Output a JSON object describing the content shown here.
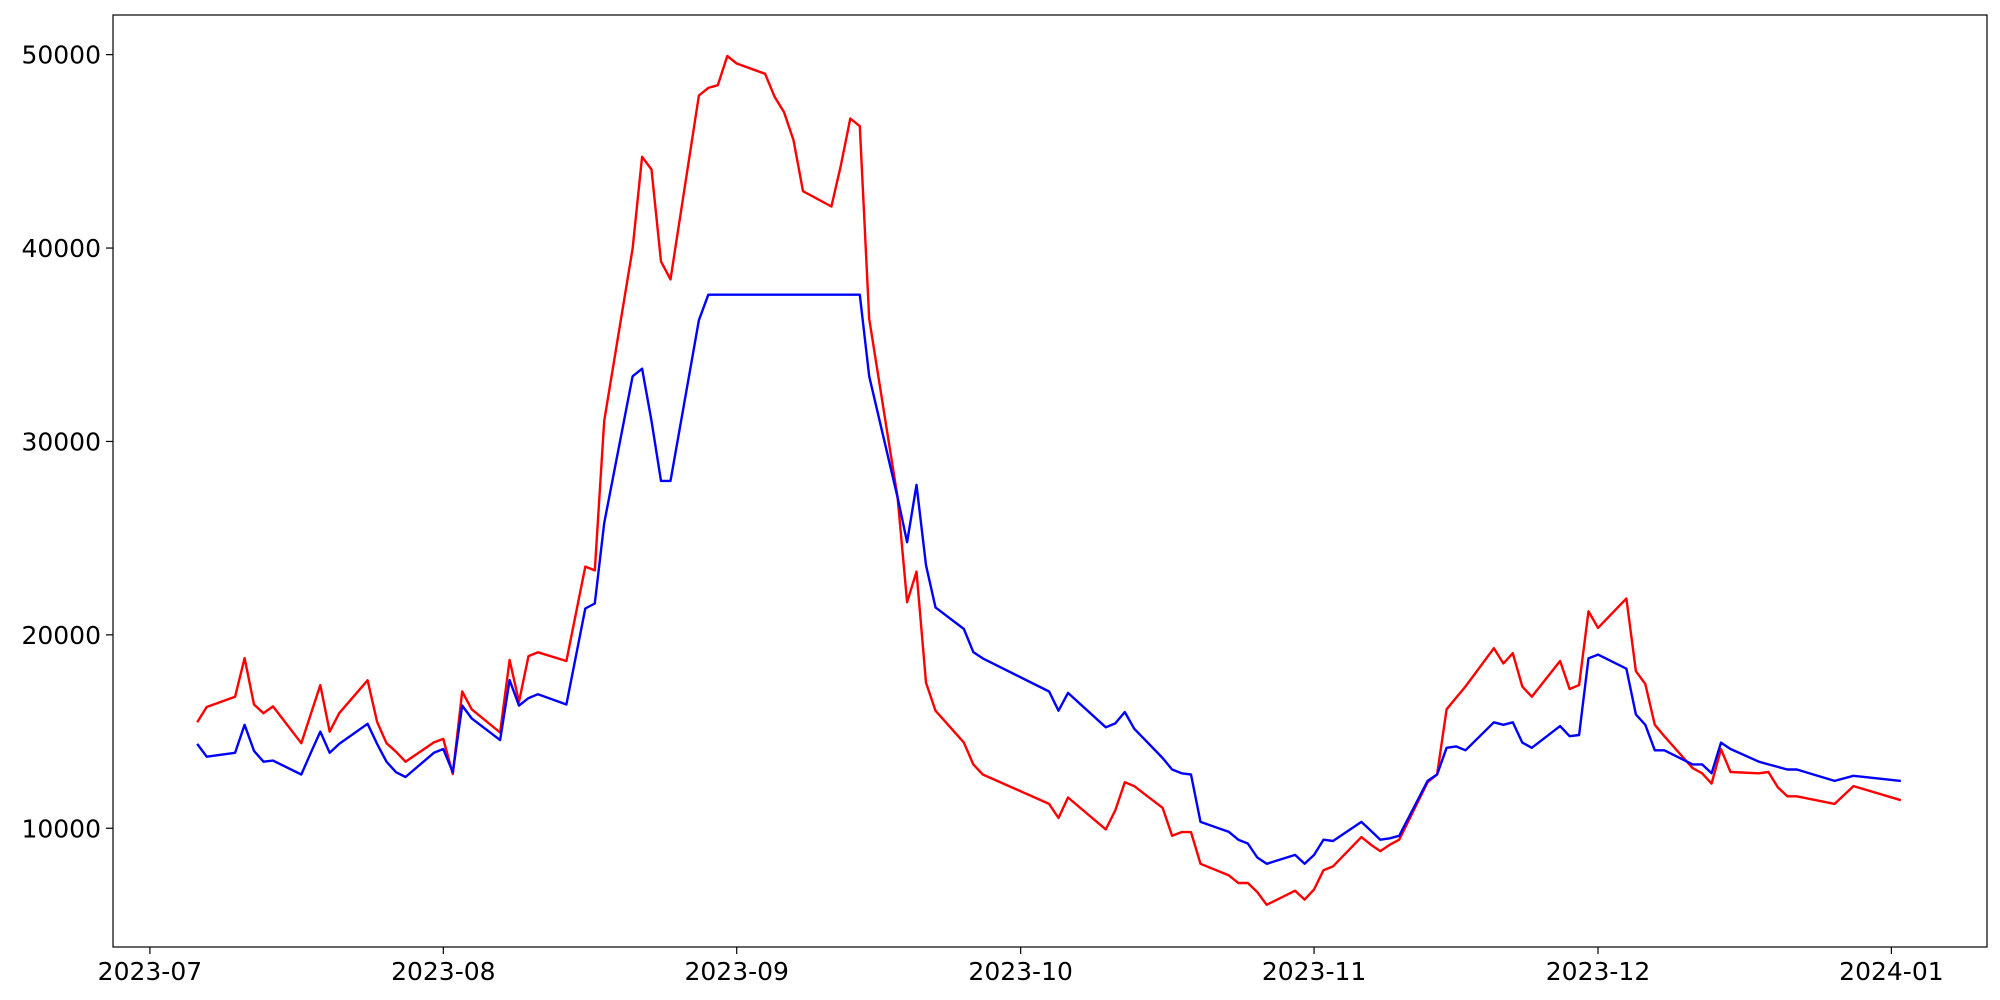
{
  "chart_data": {
    "type": "line",
    "x": [
      19544,
      19545,
      19548,
      19549,
      19550,
      19551,
      19552,
      19555,
      19556,
      19557,
      19558,
      19559,
      19562,
      19563,
      19564,
      19565,
      19566,
      19569,
      19570,
      19571,
      19572,
      19573,
      19576,
      19577,
      19578,
      19579,
      19580,
      19583,
      19585,
      19586,
      19587,
      19590,
      19591,
      19592,
      19593,
      19594,
      19597,
      19598,
      19599,
      19600,
      19601,
      19604,
      19605,
      19606,
      19607,
      19608,
      19611,
      19612,
      19613,
      19614,
      19615,
      19618,
      19619,
      19620,
      19621,
      19622,
      19625,
      19626,
      19627,
      19634,
      19635,
      19636,
      19640,
      19641,
      19642,
      19643,
      19646,
      19647,
      19648,
      19649,
      19650,
      19653,
      19654,
      19655,
      19656,
      19657,
      19660,
      19661,
      19662,
      19663,
      19664,
      19667,
      19668,
      19669,
      19670,
      19671,
      19674,
      19675,
      19676,
      19677,
      19678,
      19681,
      19682,
      19683,
      19684,
      19685,
      19688,
      19689,
      19690,
      19691,
      19692,
      19695,
      19696,
      19697,
      19698,
      19699,
      19702,
      19703,
      19704,
      19705,
      19706,
      19709,
      19710,
      19711,
      19712,
      19713,
      19717,
      19719,
      19724
    ],
    "series": [
      {
        "color": "#ff0000",
        "values": [
          15480,
          16270,
          16800,
          18800,
          16400,
          15950,
          16300,
          14400,
          15900,
          17400,
          15000,
          15950,
          17650,
          15500,
          14400,
          13960,
          13440,
          14440,
          14620,
          12800,
          17070,
          16150,
          14950,
          18700,
          16540,
          18900,
          19100,
          18650,
          23530,
          23330,
          31060,
          39970,
          44720,
          44060,
          39310,
          38380,
          47890,
          48280,
          48420,
          49930,
          49540,
          49010,
          47820,
          47030,
          45580,
          42940,
          42150,
          44260,
          46700,
          46300,
          36340,
          27100,
          21690,
          23270,
          17530,
          16080,
          14430,
          13300,
          12780,
          11260,
          10530,
          11590,
          9940,
          10930,
          12380,
          12180,
          11060,
          9610,
          9800,
          9800,
          8160,
          7560,
          7170,
          7170,
          6700,
          6040,
          6770,
          6310,
          6840,
          7830,
          8030,
          9540,
          9150,
          8820,
          9150,
          9410,
          12380,
          12780,
          16150,
          16740,
          17330,
          19310,
          18520,
          19050,
          17330,
          16800,
          18650,
          17200,
          17400,
          21220,
          20360,
          21880,
          18120,
          17460,
          15350,
          14760,
          13110,
          12840,
          12310,
          14090,
          12910,
          12840,
          12910,
          12120,
          11650,
          11650,
          11260,
          12180,
          11450
        ]
      },
      {
        "color": "#0000ff",
        "values": [
          14360,
          13700,
          13900,
          15350,
          14000,
          13440,
          13500,
          12780,
          13900,
          15000,
          13900,
          14360,
          15400,
          14360,
          13440,
          12900,
          12650,
          13900,
          14100,
          12900,
          16340,
          15680,
          14560,
          17660,
          16340,
          16730,
          16930,
          16400,
          21360,
          21620,
          25780,
          33370,
          33760,
          31060,
          27960,
          27960,
          36270,
          37590,
          37590,
          37590,
          37590,
          37590,
          37590,
          37590,
          37590,
          37590,
          37590,
          37590,
          37590,
          37590,
          33370,
          27100,
          24790,
          27760,
          23600,
          21420,
          20300,
          19110,
          18780,
          17070,
          16080,
          17000,
          15220,
          15420,
          16010,
          15150,
          13630,
          13040,
          12840,
          12780,
          10330,
          9810,
          9410,
          9210,
          8490,
          8160,
          8620,
          8160,
          8620,
          9410,
          9340,
          10330,
          9870,
          9410,
          9480,
          9610,
          12450,
          12780,
          14160,
          14230,
          14030,
          15480,
          15350,
          15480,
          14430,
          14160,
          15280,
          14760,
          14820,
          18780,
          18980,
          18250,
          15880,
          15350,
          14030,
          14030,
          13300,
          13300,
          12840,
          14430,
          14100,
          13440,
          13300,
          13170,
          13040,
          13040,
          12450,
          12710,
          12450
        ]
      }
    ],
    "xlim": [
      19535.1,
      19733.1
    ],
    "xticks": [
      {
        "value": 19539,
        "label": "2023-07"
      },
      {
        "value": 19570,
        "label": "2023-08"
      },
      {
        "value": 19601,
        "label": "2023-09"
      },
      {
        "value": 19631,
        "label": "2023-10"
      },
      {
        "value": 19662,
        "label": "2023-11"
      },
      {
        "value": 19692,
        "label": "2023-12"
      },
      {
        "value": 19723,
        "label": "2024-01"
      }
    ],
    "ylim": [
      3860,
      52050
    ],
    "yticks": [
      10000,
      20000,
      30000,
      40000,
      50000
    ]
  }
}
